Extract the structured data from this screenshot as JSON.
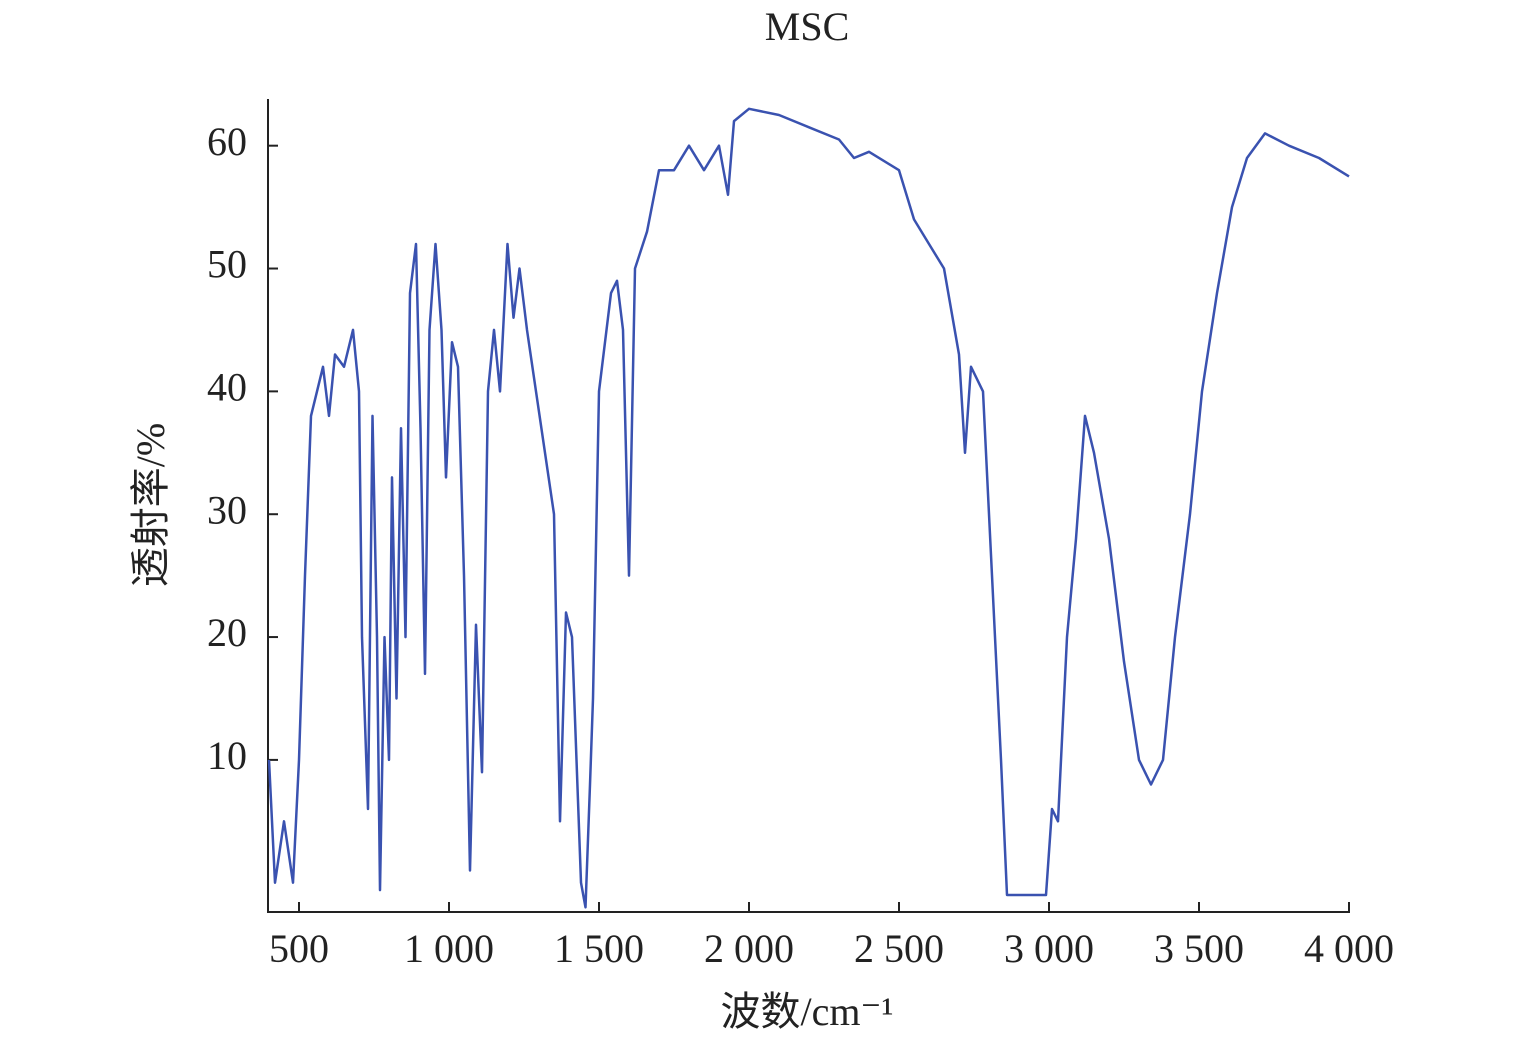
{
  "chart_data": {
    "type": "line",
    "title": "MSC",
    "x_label": "波数/cm⁻¹",
    "y_label": "透射率/%",
    "xlim": [
      400,
      4000
    ],
    "ylim": [
      -2.3,
      63.8
    ],
    "xticks": [
      500,
      {
        "value": 1000,
        "label": "1 000"
      },
      {
        "value": 1500,
        "label": "1 500"
      },
      {
        "value": 2000,
        "label": "2 000"
      },
      {
        "value": 2500,
        "label": "2 500"
      },
      {
        "value": 3000,
        "label": "3 000"
      },
      {
        "value": 3500,
        "label": "3 500"
      },
      {
        "value": 4000,
        "label": "4 000"
      }
    ],
    "yticks": [
      10,
      20,
      30,
      40,
      50,
      60
    ],
    "grid": false,
    "series": [
      {
        "color": "#3a52b0",
        "x": [
          400,
          420,
          450,
          480,
          500,
          520,
          540,
          560,
          580,
          600,
          620,
          650,
          680,
          700,
          710,
          730,
          745,
          760,
          770,
          785,
          800,
          810,
          825,
          840,
          855,
          870,
          890,
          905,
          920,
          935,
          955,
          975,
          990,
          1010,
          1030,
          1050,
          1070,
          1090,
          1110,
          1130,
          1150,
          1170,
          1195,
          1215,
          1235,
          1260,
          1290,
          1320,
          1350,
          1370,
          1390,
          1410,
          1440,
          1455,
          1470,
          1480,
          1500,
          1540,
          1560,
          1580,
          1600,
          1620,
          1660,
          1700,
          1750,
          1800,
          1850,
          1900,
          1930,
          1950,
          2000,
          2100,
          2200,
          2300,
          2350,
          2400,
          2500,
          2550,
          2600,
          2650,
          2700,
          2720,
          2740,
          2780,
          2810,
          2840,
          2860,
          2900,
          2950,
          2990,
          3010,
          3030,
          3060,
          3090,
          3120,
          3150,
          3200,
          3250,
          3300,
          3340,
          3380,
          3420,
          3470,
          3510,
          3560,
          3610,
          3660,
          3720,
          3800,
          3900,
          4000
        ],
        "values": [
          10,
          0,
          5,
          0,
          10,
          25,
          38,
          40,
          42,
          38,
          43,
          42,
          45,
          40,
          20,
          6,
          38,
          20,
          -0.6,
          20,
          10,
          33,
          15,
          37,
          20,
          48,
          52,
          37,
          17,
          45,
          52,
          45,
          33,
          44,
          42,
          25,
          1,
          21,
          9,
          40,
          45,
          40,
          52,
          46,
          50,
          45,
          40,
          35,
          30,
          5,
          22,
          20,
          0,
          -2,
          8,
          15,
          40,
          48,
          49,
          45,
          25,
          50,
          53,
          58,
          58,
          60,
          58,
          60,
          56,
          62,
          63,
          62.5,
          61.5,
          60.5,
          59,
          59.5,
          58,
          54,
          52,
          50,
          43,
          35,
          42,
          40,
          25,
          10,
          -1,
          -1,
          -1,
          -1,
          6,
          5,
          20,
          28,
          38,
          35,
          28,
          18,
          10,
          8,
          10,
          20,
          30,
          40,
          48,
          55,
          59,
          61,
          60,
          59,
          57.5
        ]
      }
    ]
  }
}
